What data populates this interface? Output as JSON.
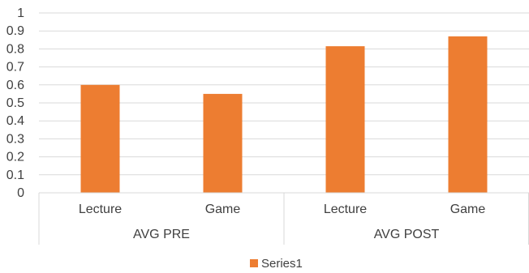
{
  "chart_data": {
    "type": "bar",
    "categories": [
      "Lecture",
      "Game",
      "Lecture",
      "Game"
    ],
    "groups": [
      {
        "label": "AVG PRE",
        "span": 2
      },
      {
        "label": "AVG POST",
        "span": 2
      }
    ],
    "series": [
      {
        "name": "Series1",
        "values": [
          0.6,
          0.55,
          0.815,
          0.87
        ],
        "color": "#ED7D31"
      }
    ],
    "ylim": [
      0,
      1
    ],
    "yticks": [
      0,
      0.1,
      0.2,
      0.3,
      0.4,
      0.5,
      0.6,
      0.7,
      0.8,
      0.9,
      1
    ],
    "ytick_labels": [
      "0",
      "0.1",
      "0.2",
      "0.3",
      "0.4",
      "0.5",
      "0.6",
      "0.7",
      "0.8",
      "0.9",
      "1"
    ],
    "grid": true,
    "gridline_color": "#d9d9d9",
    "legend_position": "bottom"
  }
}
